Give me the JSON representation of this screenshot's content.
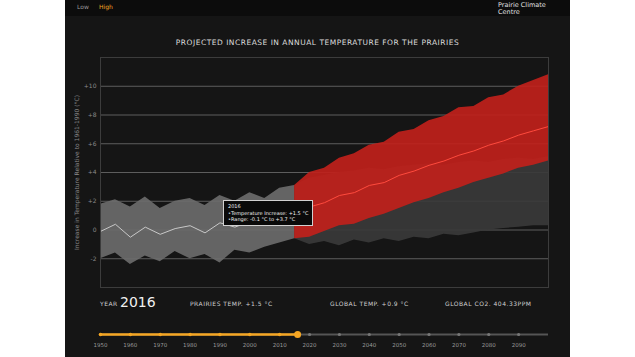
{
  "header": {
    "tabs": [
      "Low",
      "High"
    ],
    "logo": "Prairie Climate Centre"
  },
  "chart_data": {
    "type": "area",
    "title": "PROJECTED INCREASE IN ANNUAL TEMPERATURE FOR THE PRAIRIES",
    "y_label": "Increase in Temperature Relative to 1961-1990 (°C)",
    "x": [
      1950,
      1955,
      1960,
      1965,
      1970,
      1975,
      1980,
      1985,
      1990,
      1995,
      2000,
      2005,
      2010,
      2015,
      2020,
      2025,
      2030,
      2035,
      2040,
      2045,
      2050,
      2055,
      2060,
      2065,
      2070,
      2075,
      2080,
      2085,
      2090,
      2095,
      2100
    ],
    "series": [
      {
        "type": "area",
        "color": "#3a3a3a",
        "lower": [
          null,
          null,
          null,
          null,
          null,
          null,
          null,
          null,
          null,
          null,
          null,
          null,
          null,
          -0.6,
          -1.0,
          -0.8,
          -1.1,
          -0.7,
          -0.9,
          -0.6,
          -0.8,
          -0.5,
          -0.6,
          -0.3,
          -0.4,
          -0.2,
          0.0,
          0.1,
          0.2,
          0.3,
          0.3
        ],
        "upper": [
          null,
          null,
          null,
          null,
          null,
          null,
          null,
          null,
          null,
          null,
          null,
          null,
          null,
          3.1,
          3.6,
          3.8,
          4.0,
          4.1,
          4.3,
          4.2,
          4.4,
          4.5,
          4.6,
          4.5,
          4.7,
          4.8,
          4.7,
          4.9,
          5.0,
          4.9,
          5.1
        ]
      },
      {
        "type": "area",
        "color": "#6b6b6b",
        "lower": [
          -2.0,
          -1.6,
          -2.4,
          -1.8,
          -2.2,
          -1.5,
          -2.0,
          -1.7,
          -2.3,
          -1.4,
          -1.6,
          -1.2,
          -0.9,
          -0.6,
          null,
          null,
          null,
          null,
          null,
          null,
          null,
          null,
          null,
          null,
          null,
          null,
          null,
          null,
          null,
          null,
          null
        ],
        "upper": [
          1.8,
          2.1,
          1.6,
          2.3,
          1.5,
          2.0,
          2.2,
          1.7,
          2.4,
          2.0,
          2.6,
          2.2,
          2.9,
          3.1,
          null,
          null,
          null,
          null,
          null,
          null,
          null,
          null,
          null,
          null,
          null,
          null,
          null,
          null,
          null,
          null,
          null
        ]
      },
      {
        "type": "area",
        "color": "#c0211b",
        "lower": [
          null,
          null,
          null,
          null,
          null,
          null,
          null,
          null,
          null,
          null,
          null,
          null,
          null,
          -0.6,
          -0.5,
          -0.1,
          0.3,
          0.4,
          0.8,
          1.1,
          1.5,
          1.9,
          2.2,
          2.6,
          2.9,
          3.3,
          3.6,
          3.9,
          4.3,
          4.5,
          4.8
        ],
        "upper": [
          null,
          null,
          null,
          null,
          null,
          null,
          null,
          null,
          null,
          null,
          null,
          null,
          null,
          3.1,
          4.0,
          4.3,
          5.0,
          5.3,
          5.9,
          6.1,
          6.8,
          7.0,
          7.6,
          7.9,
          8.5,
          8.6,
          9.2,
          9.4,
          10.0,
          10.4,
          10.8
        ]
      },
      {
        "type": "line",
        "color": "#c8c8c8",
        "values": [
          -0.1,
          0.4,
          -0.5,
          0.2,
          -0.3,
          0.1,
          0.3,
          -0.2,
          0.5,
          0.2,
          0.6,
          0.4,
          1.0,
          1.2,
          null,
          null,
          null,
          null,
          null,
          null,
          null,
          null,
          null,
          null,
          null,
          null,
          null,
          null,
          null,
          null,
          null
        ]
      },
      {
        "type": "line",
        "color": "#ff4a3d",
        "values": [
          null,
          null,
          null,
          null,
          null,
          null,
          null,
          null,
          null,
          null,
          null,
          null,
          null,
          1.2,
          1.6,
          1.9,
          2.4,
          2.6,
          3.1,
          3.3,
          3.8,
          4.1,
          4.5,
          4.8,
          5.2,
          5.5,
          5.9,
          6.2,
          6.6,
          6.9,
          7.2
        ]
      }
    ],
    "xlim": [
      1950,
      2100
    ],
    "xticks": [
      1950,
      1960,
      1970,
      1980,
      1990,
      2000,
      2010,
      2020,
      2030,
      2040,
      2050,
      2060,
      2070,
      2080,
      2090
    ],
    "ylim": [
      -4,
      12
    ],
    "yticks": [
      -2,
      0,
      {
        "value": 2,
        "label": "+2"
      },
      {
        "value": 4,
        "label": "+4"
      },
      {
        "value": 6,
        "label": "+6"
      },
      {
        "value": 8,
        "label": "+8"
      },
      {
        "value": 10,
        "label": "+10"
      }
    ],
    "grid": true,
    "annotations": {
      "tooltip": [
        "2016",
        "•Temperature Increase: +1.5 °C",
        "•Range: -0.1 °C to +3.7 °C"
      ],
      "readout_label": "YEAR",
      "readout_year": 2016,
      "readout": [
        "PRAIRIES TEMP. +1.5 °C",
        "GLOBAL TEMP. +0.9 °C",
        "GLOBAL CO2. 404.33PPM"
      ]
    }
  }
}
